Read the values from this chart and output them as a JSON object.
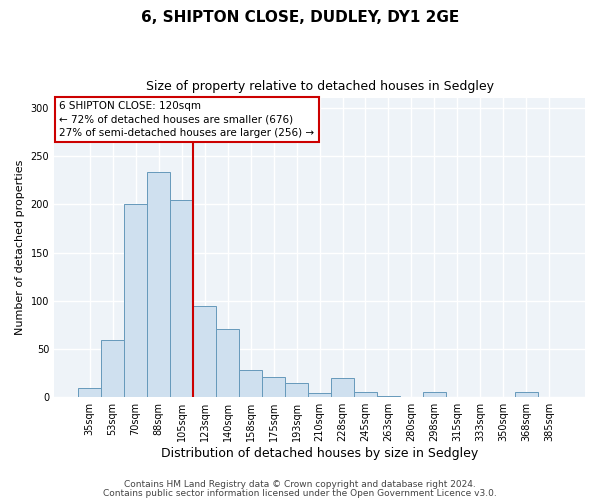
{
  "title": "6, SHIPTON CLOSE, DUDLEY, DY1 2GE",
  "subtitle": "Size of property relative to detached houses in Sedgley",
  "xlabel": "Distribution of detached houses by size in Sedgley",
  "ylabel": "Number of detached properties",
  "bar_labels": [
    "35sqm",
    "53sqm",
    "70sqm",
    "88sqm",
    "105sqm",
    "123sqm",
    "140sqm",
    "158sqm",
    "175sqm",
    "193sqm",
    "210sqm",
    "228sqm",
    "245sqm",
    "263sqm",
    "280sqm",
    "298sqm",
    "315sqm",
    "333sqm",
    "350sqm",
    "368sqm",
    "385sqm"
  ],
  "bar_values": [
    10,
    59,
    200,
    234,
    205,
    95,
    71,
    28,
    21,
    15,
    4,
    20,
    5,
    1,
    0,
    5,
    0,
    0,
    0,
    5,
    0
  ],
  "bar_color": "#cfe0ef",
  "bar_edge_color": "#6699bb",
  "vline_color": "#cc0000",
  "vline_pos": 4.5,
  "ylim": [
    0,
    310
  ],
  "yticks": [
    0,
    50,
    100,
    150,
    200,
    250,
    300
  ],
  "annotation_title": "6 SHIPTON CLOSE: 120sqm",
  "annotation_line1": "← 72% of detached houses are smaller (676)",
  "annotation_line2": "27% of semi-detached houses are larger (256) →",
  "annotation_box_color": "#cc0000",
  "footer_line1": "Contains HM Land Registry data © Crown copyright and database right 2024.",
  "footer_line2": "Contains public sector information licensed under the Open Government Licence v3.0.",
  "bg_color": "#ffffff",
  "plot_bg_color": "#eef3f8",
  "grid_color": "#ffffff",
  "title_fontsize": 11,
  "subtitle_fontsize": 9,
  "tick_fontsize": 7,
  "ylabel_fontsize": 8,
  "xlabel_fontsize": 9,
  "footer_fontsize": 6.5
}
